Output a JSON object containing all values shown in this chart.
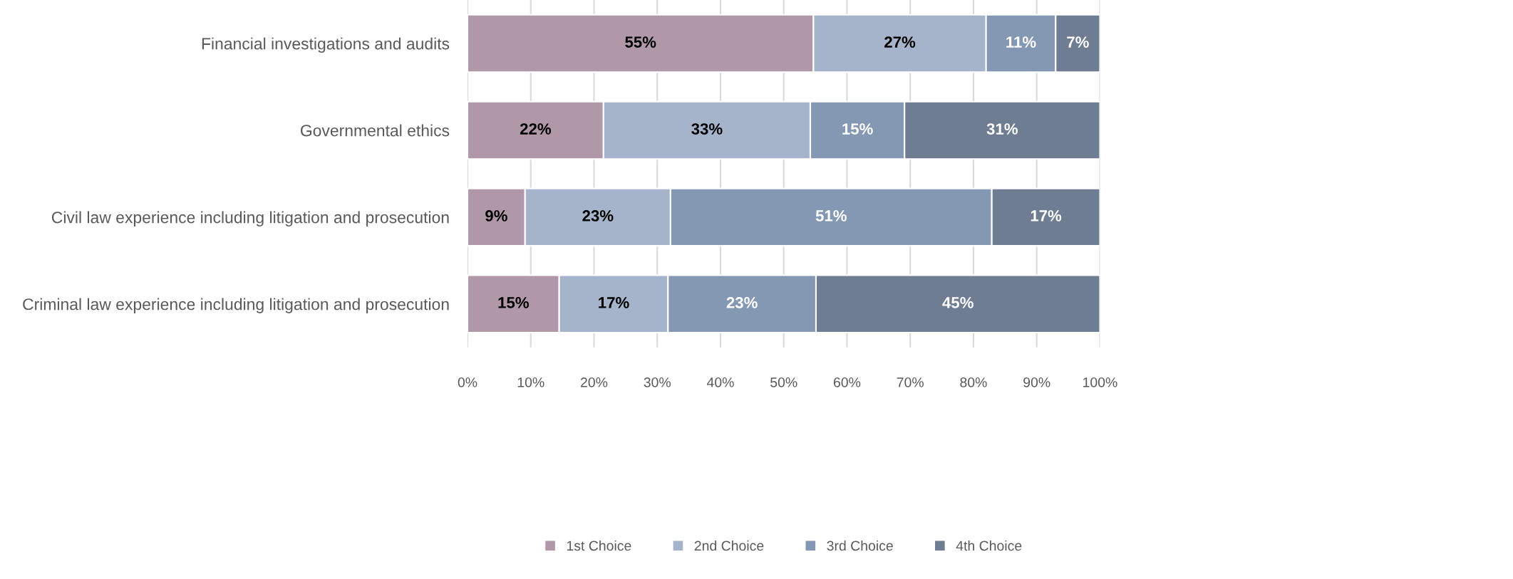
{
  "chart_data": {
    "type": "bar",
    "orientation": "horizontal",
    "stacked": true,
    "categories": [
      "Financial investigations and audits",
      "Governmental ethics",
      "Civil law experience including litigation and prosecution",
      "Criminal law experience including litigation and prosecution"
    ],
    "series": [
      {
        "name": "1st Choice",
        "color": "#b098a9",
        "values": [
          54.7,
          21.5,
          9.1,
          14.5
        ],
        "value_labels": [
          "55%",
          "22%",
          "9%",
          "15%"
        ]
      },
      {
        "name": "2nd Choice",
        "color": "#a6b4cb",
        "values": [
          27.3,
          32.7,
          23.0,
          17.2
        ],
        "value_labels": [
          "27%",
          "33%",
          "23%",
          "17%"
        ]
      },
      {
        "name": "3rd Choice",
        "color": "#8598b3",
        "values": [
          11.0,
          14.9,
          50.8,
          23.4
        ],
        "value_labels": [
          "11%",
          "15%",
          "51%",
          "23%"
        ]
      },
      {
        "name": "4th Choice",
        "color": "#6e7d92",
        "values": [
          7.0,
          30.9,
          17.1,
          44.9
        ],
        "value_labels": [
          "7%",
          "31%",
          "17%",
          "45%"
        ]
      }
    ],
    "xlim": [
      0,
      100
    ],
    "xticks": [
      {
        "value": 0,
        "label": "0%"
      },
      {
        "value": 10,
        "label": "10%"
      },
      {
        "value": 20,
        "label": "20%"
      },
      {
        "value": 30,
        "label": "30%"
      },
      {
        "value": 40,
        "label": "40%"
      },
      {
        "value": 50,
        "label": "50%"
      },
      {
        "value": 60,
        "label": "60%"
      },
      {
        "value": 70,
        "label": "70%"
      },
      {
        "value": 80,
        "label": "80%"
      },
      {
        "value": 90,
        "label": "90%"
      },
      {
        "value": 100,
        "label": "100%"
      }
    ],
    "grid": "x",
    "legend": "bottom"
  }
}
